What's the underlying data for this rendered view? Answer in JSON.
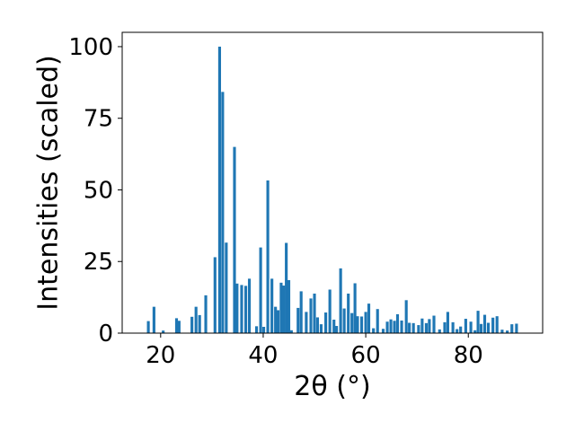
{
  "chart_data": {
    "type": "bar",
    "title": "",
    "xlabel": "2θ (°)",
    "ylabel": "Intensities (scaled)",
    "xlim": [
      12.5,
      94.5
    ],
    "ylim": [
      0,
      105
    ],
    "xticks": [
      20,
      40,
      60,
      80
    ],
    "yticks": [
      0,
      25,
      50,
      75,
      100
    ],
    "xtick_labels": [
      "20",
      "40",
      "60",
      "80"
    ],
    "ytick_labels": [
      "0",
      "25",
      "50",
      "75",
      "100"
    ],
    "bar_width": 0.55,
    "grid": false,
    "legend": "none",
    "colors": {
      "bar": "#1f77b4",
      "axis": "#000000",
      "background": "#ffffff"
    },
    "x": [
      17.6,
      18.7,
      20.5,
      23.1,
      23.6,
      26.1,
      26.9,
      27.6,
      28.8,
      30.6,
      31.5,
      32.1,
      32.8,
      34.4,
      34.9,
      35.8,
      36.6,
      37.3,
      38.7,
      39.5,
      40.1,
      40.9,
      41.7,
      42.4,
      42.9,
      43.5,
      44.0,
      44.5,
      45.0,
      45.5,
      46.8,
      47.4,
      48.4,
      49.3,
      50.0,
      50.6,
      51.3,
      52.2,
      53.0,
      53.8,
      54.3,
      55.1,
      55.8,
      56.6,
      57.3,
      57.9,
      58.4,
      59.2,
      60.0,
      60.6,
      61.5,
      62.3,
      63.4,
      64.2,
      64.9,
      65.6,
      66.2,
      67.0,
      67.9,
      68.5,
      69.3,
      70.3,
      71.0,
      71.8,
      72.4,
      73.3,
      74.4,
      75.4,
      76.0,
      77.0,
      77.8,
      78.5,
      79.5,
      80.5,
      81.3,
      81.9,
      82.5,
      83.2,
      83.9,
      84.8,
      85.6,
      86.6,
      87.6,
      88.5,
      89.4
    ],
    "values": [
      4.2,
      9.2,
      0.9,
      5.2,
      4.3,
      5.7,
      9.2,
      6.3,
      13.2,
      26.5,
      100,
      84.2,
      31.6,
      65.0,
      17.3,
      16.8,
      16.5,
      19.0,
      2.4,
      29.9,
      2.2,
      53.3,
      19.0,
      9.2,
      8.0,
      17.6,
      16.6,
      31.5,
      18.5,
      1.0,
      8.8,
      14.6,
      7.4,
      12.1,
      13.8,
      5.5,
      3.1,
      7.2,
      15.2,
      4.7,
      2.5,
      22.6,
      8.6,
      13.8,
      7.0,
      17.4,
      5.9,
      5.8,
      7.4,
      10.3,
      1.7,
      8.4,
      1.5,
      4.0,
      4.8,
      4.3,
      6.6,
      4.4,
      11.5,
      3.6,
      3.5,
      2.8,
      5.1,
      3.5,
      4.9,
      6.1,
      1.3,
      3.8,
      7.4,
      3.8,
      1.4,
      2.3,
      5.0,
      4.0,
      1.0,
      7.8,
      3.2,
      6.4,
      3.6,
      5.4,
      5.9,
      1.2,
      0.9,
      3.1,
      3.3
    ]
  }
}
